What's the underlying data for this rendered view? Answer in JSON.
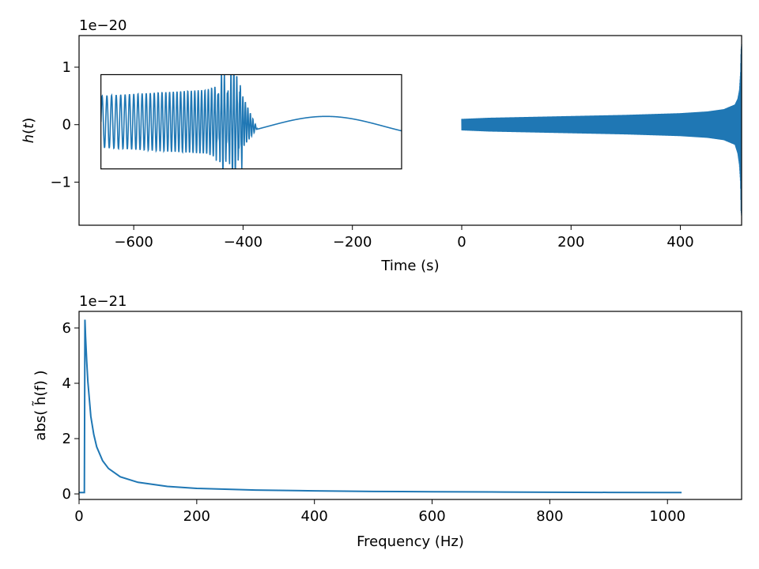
{
  "chart_data": [
    {
      "type": "line",
      "xlabel": "Time (s)",
      "ylabel": "h(t)",
      "ylabel_italic_var": "h",
      "ylabel_parts": [
        "",
        "(",
        "t",
        ")"
      ],
      "y_offset_text": "1e−20",
      "xlim": [
        -700,
        512
      ],
      "ylim": [
        -1.75,
        1.55
      ],
      "xticks": [
        -600,
        -400,
        -200,
        0,
        200,
        400
      ],
      "xtick_labels": [
        "−600",
        "−400",
        "−200",
        "0",
        "200",
        "400"
      ],
      "yticks": [
        -1,
        0,
        1
      ],
      "ytick_labels": [
        "−1",
        "0",
        "1"
      ],
      "line_color": "#1f77b4",
      "series": [
        {
          "description": "full waveform envelope",
          "envelope_x": [
            0,
            50,
            100,
            200,
            300,
            400,
            450,
            480,
            500,
            505,
            508,
            510,
            511,
            512
          ],
          "envelope_y": [
            0.1,
            0.12,
            0.13,
            0.15,
            0.17,
            0.2,
            0.23,
            0.27,
            0.35,
            0.45,
            0.6,
            0.9,
            1.3,
            1.4
          ],
          "envelope_y_lower": [
            -0.1,
            -0.12,
            -0.13,
            -0.15,
            -0.17,
            -0.2,
            -0.23,
            -0.27,
            -0.35,
            -0.5,
            -0.7,
            -1.0,
            -1.5,
            -1.6
          ]
        }
      ],
      "inset": {
        "xlim": [
          -660,
          -110
        ],
        "ylim": [
          -0.77,
          0.87
        ],
        "frame_color": "#000000"
      }
    },
    {
      "type": "line",
      "xlabel": "Frequency (Hz)",
      "ylabel": "abs( h̃(f) )",
      "y_offset_text": "1e−21",
      "xlim": [
        0,
        1126
      ],
      "ylim": [
        -0.2,
        6.6
      ],
      "xticks": [
        0,
        200,
        400,
        600,
        800,
        1000
      ],
      "xtick_labels": [
        "0",
        "200",
        "400",
        "600",
        "800",
        "1000"
      ],
      "yticks": [
        0,
        2,
        4,
        6
      ],
      "ytick_labels": [
        "0",
        "2",
        "4",
        "6"
      ],
      "line_color": "#1f77b4",
      "series": [
        {
          "description": "frequency-domain amplitude",
          "x": [
            0,
            9,
            10,
            11,
            13,
            15,
            20,
            25,
            30,
            40,
            50,
            70,
            100,
            150,
            200,
            300,
            400,
            500,
            600,
            700,
            800,
            900,
            1000,
            1024
          ],
          "y": [
            0.05,
            0.05,
            6.3,
            5.7,
            4.8,
            4.05,
            2.8,
            2.15,
            1.7,
            1.2,
            0.92,
            0.62,
            0.42,
            0.27,
            0.2,
            0.14,
            0.11,
            0.09,
            0.08,
            0.07,
            0.06,
            0.055,
            0.05,
            0.05
          ]
        }
      ]
    }
  ]
}
